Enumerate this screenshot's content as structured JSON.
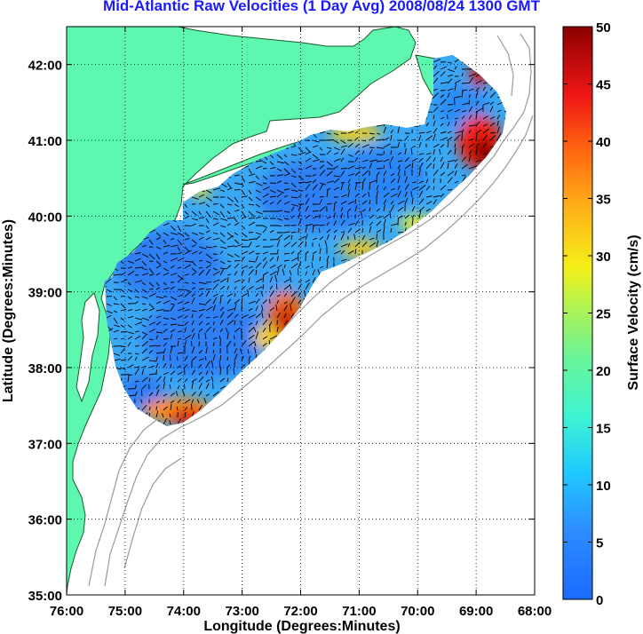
{
  "title": "Mid-Atlantic Raw Velocities (1 Day Avg) 2008/08/24 1300 GMT",
  "map": {
    "xlabel": "Longitude (Degrees:Minutes)",
    "ylabel": "Latitude (Degrees:Minutes)",
    "lon_range": [
      -76,
      -68
    ],
    "lat_range": [
      35,
      42.5
    ],
    "x_ticks": [
      "76:00",
      "75:00",
      "74:00",
      "73:00",
      "72:00",
      "71:00",
      "70:00",
      "69:00",
      "68:00"
    ],
    "y_ticks": [
      "35:00",
      "36:00",
      "37:00",
      "38:00",
      "39:00",
      "40:00",
      "41:00",
      "42:00"
    ],
    "grid": "dotted",
    "land_color": "#5ef7b0",
    "bathymetry_color": "#9a9a9a",
    "vector_color": "#000000"
  },
  "colorbar": {
    "label": "Surface Velocity (cm/s)",
    "range": [
      0,
      50
    ],
    "ticks": [
      "0",
      "5",
      "10",
      "15",
      "20",
      "25",
      "30",
      "35",
      "40",
      "45",
      "50"
    ],
    "colormap": "jet"
  }
}
